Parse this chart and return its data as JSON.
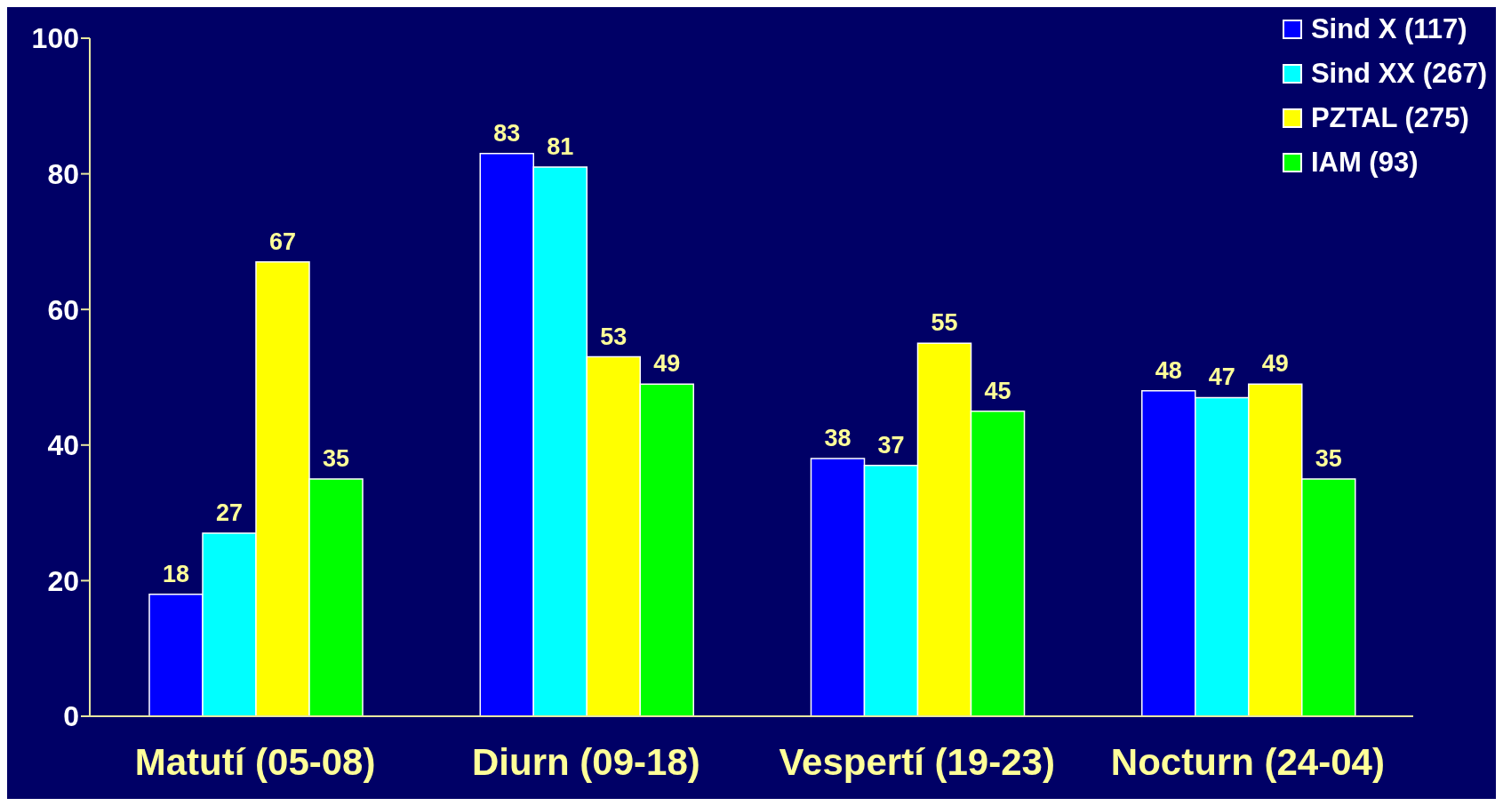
{
  "chart_data": {
    "type": "bar",
    "categories": [
      "Matutí (05-08)",
      "Diurn (09-18)",
      "Vespertí (19-23)",
      "Nocturn (24-04)"
    ],
    "series": [
      {
        "name": "Sind X (117)",
        "color": "#0000ff",
        "values": [
          18,
          83,
          38,
          48
        ]
      },
      {
        "name": "Sind XX (267)",
        "color": "#00ffff",
        "values": [
          27,
          81,
          37,
          47
        ]
      },
      {
        "name": "PZTAL (275)",
        "color": "#ffff00",
        "values": [
          67,
          53,
          55,
          49
        ]
      },
      {
        "name": "IAM (93)",
        "color": "#00ff00",
        "values": [
          35,
          49,
          45,
          35
        ]
      }
    ],
    "ylim": [
      0,
      100
    ],
    "yticks": [
      0,
      20,
      40,
      60,
      80,
      100
    ],
    "grid": false,
    "legend": "top right",
    "data_labels": true
  }
}
